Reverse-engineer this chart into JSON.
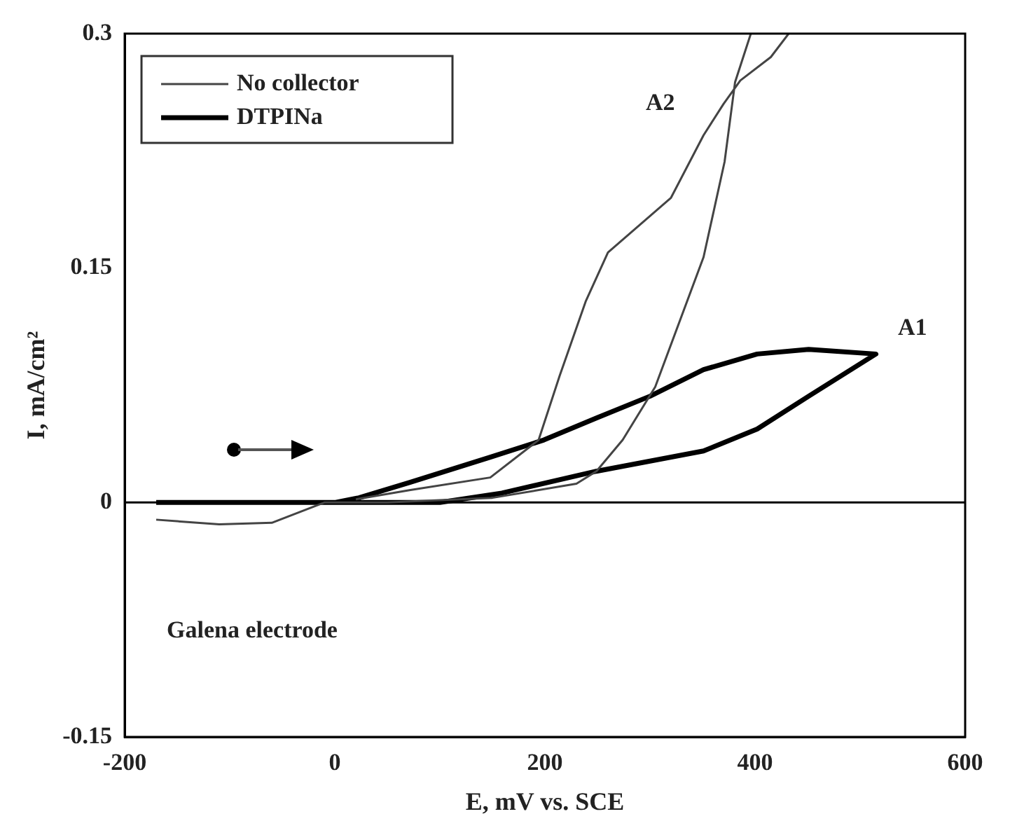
{
  "chart_data": {
    "type": "line",
    "xlabel": "E, mV vs. SCE",
    "ylabel": "I, mA/cm²",
    "xlim": [
      -200,
      600
    ],
    "xticks": [
      -200,
      0,
      200,
      400,
      600
    ],
    "ylim": [
      -0.15,
      0.3
    ],
    "yticks": [
      -0.15,
      0,
      0.15,
      0.3
    ],
    "grid": false,
    "legend": "top left",
    "marker": "none",
    "line_style": "solid",
    "ref_lines": [
      {
        "axis": "y",
        "value": 0,
        "color": "#000000"
      }
    ],
    "series": [
      {
        "name": "No collector",
        "color": "#444444",
        "x": [
          -170,
          -110,
          -60,
          -10,
          50,
          150,
          230,
          249,
          274,
          305,
          351,
          371,
          381,
          396,
          null,
          432,
          415,
          386,
          370,
          351,
          320,
          260,
          239,
          214,
          194,
          148,
          72,
          20
        ],
        "values": [
          -0.011,
          -0.014,
          -0.013,
          0,
          0,
          0.003,
          0.012,
          0.02,
          0.04,
          0.074,
          0.157,
          0.218,
          0.269,
          0.3,
          null,
          0.3,
          0.285,
          0.27,
          0.255,
          0.235,
          0.195,
          0.16,
          0.129,
          0.081,
          0.04,
          0.016,
          0.008,
          0.002
        ]
      },
      {
        "name": "DTPINa",
        "color": "#000000",
        "x": [
          -170,
          0,
          100,
          159,
          249,
          351,
          402,
          451,
          515,
          451,
          402,
          351,
          300,
          249,
          199,
          148,
          72,
          23,
          0
        ],
        "values": [
          0,
          0,
          0,
          0.006,
          0.02,
          0.033,
          0.047,
          0.068,
          0.095,
          0.098,
          0.095,
          0.085,
          0.068,
          0.054,
          0.04,
          0.029,
          0.013,
          0.003,
          0
        ]
      }
    ],
    "annotations": [
      "A1",
      "A2",
      "Galena electrode"
    ]
  }
}
